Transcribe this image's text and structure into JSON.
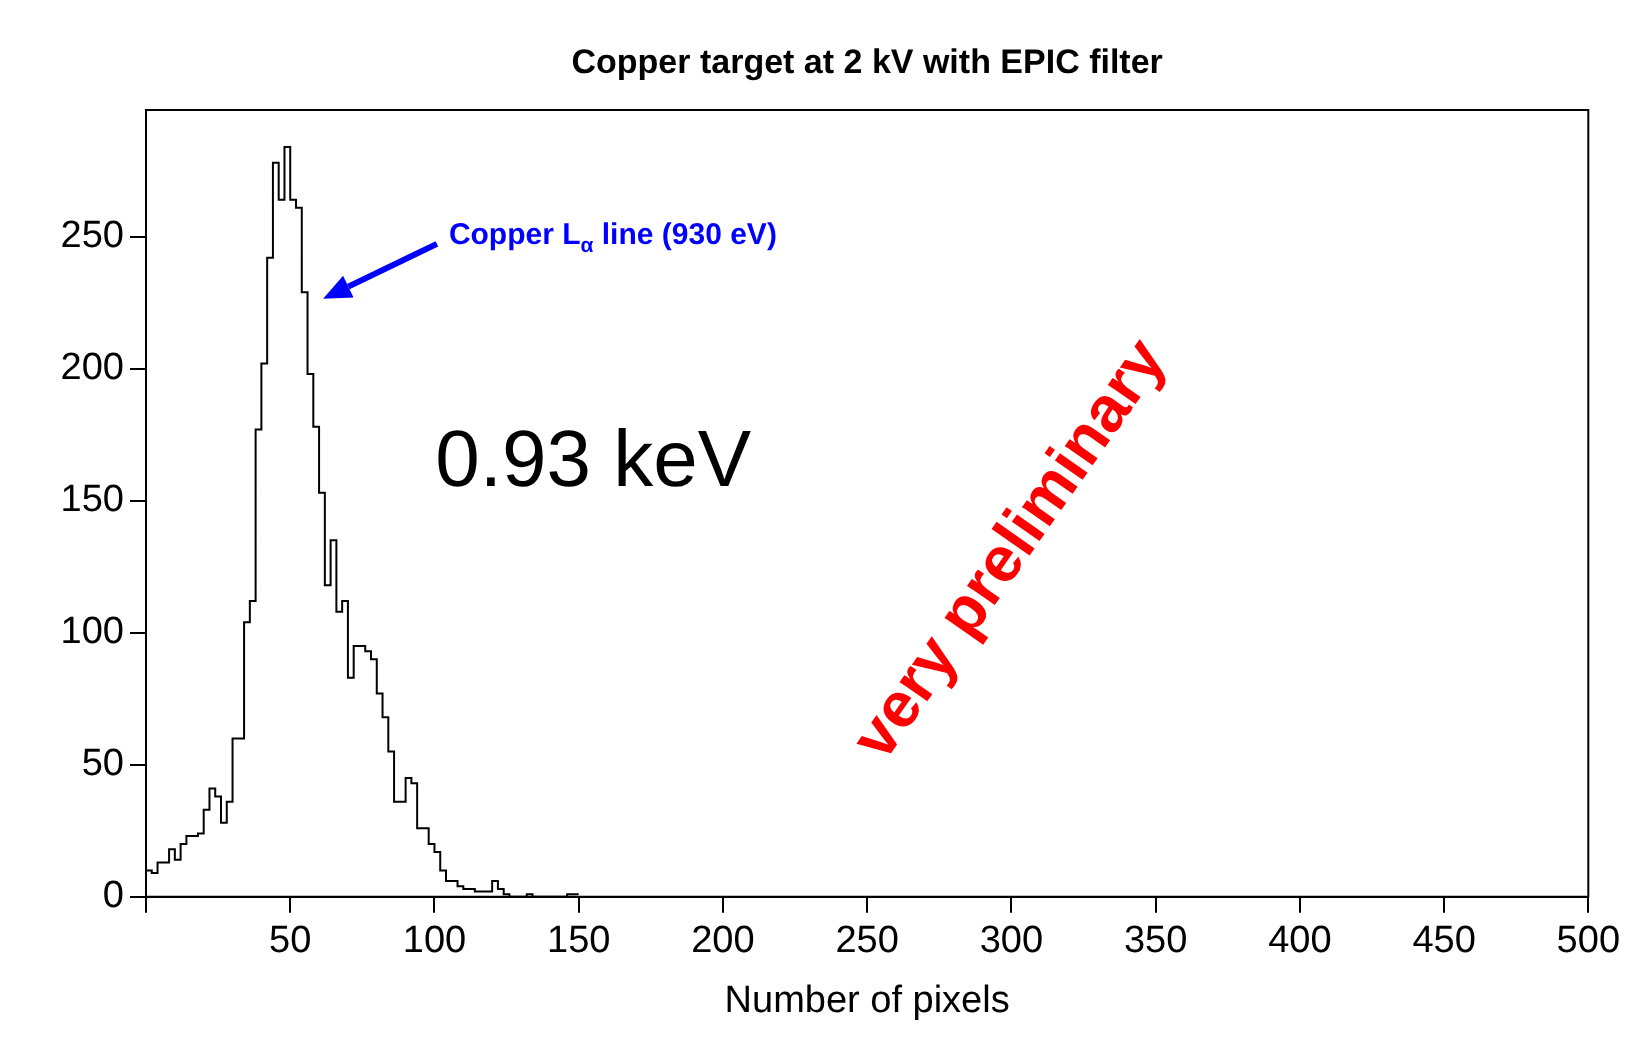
{
  "chart_data": {
    "type": "histogram",
    "title": "Copper target at 2 kV with EPIC filter",
    "xlabel": "Number of pixels",
    "bins": [
      0,
      2,
      4,
      6,
      8,
      10,
      12,
      14,
      16,
      18,
      20,
      22,
      24,
      26,
      28,
      30,
      32,
      34,
      36,
      38,
      40,
      42,
      44,
      46,
      48,
      50,
      52,
      54,
      56,
      58,
      60,
      62,
      64,
      66,
      68,
      70,
      72,
      74,
      76,
      78,
      80,
      82,
      84,
      86,
      88,
      90,
      92,
      94,
      96,
      98,
      100,
      102,
      104,
      106,
      108,
      110,
      112,
      114,
      116,
      118,
      120,
      122,
      124,
      126,
      128,
      130,
      132,
      134,
      136,
      138,
      140,
      142,
      144,
      146,
      148,
      150
    ],
    "values": [
      6,
      10,
      9,
      13,
      13,
      18,
      14,
      20,
      23,
      23,
      24,
      33,
      41,
      38,
      28,
      36,
      60,
      60,
      104,
      112,
      177,
      202,
      242,
      278,
      264,
      284,
      264,
      261,
      229,
      198,
      178,
      153,
      118,
      135,
      108,
      112,
      83,
      95,
      95,
      93,
      90,
      77,
      68,
      55,
      36,
      36,
      45,
      43,
      26,
      26,
      20,
      17,
      10,
      6,
      6,
      4,
      3,
      3,
      2,
      2,
      2,
      6,
      3,
      1,
      0,
      0,
      0,
      1,
      0,
      0,
      0,
      0,
      0,
      0,
      1
    ],
    "color": "#000000",
    "xlim": [
      0,
      500
    ],
    "xticks": [
      {
        "value": 0,
        "label": null
      },
      50,
      100,
      150,
      200,
      250,
      300,
      350,
      400,
      450,
      500
    ],
    "ylim": [
      0,
      298
    ],
    "yticks": [
      0,
      50,
      100,
      150,
      200,
      250
    ],
    "grid": false,
    "legend": false,
    "annotations": [
      "Copper L$_{α}$ line (930 eV)",
      "0.93 keV",
      "very preliminary"
    ]
  }
}
